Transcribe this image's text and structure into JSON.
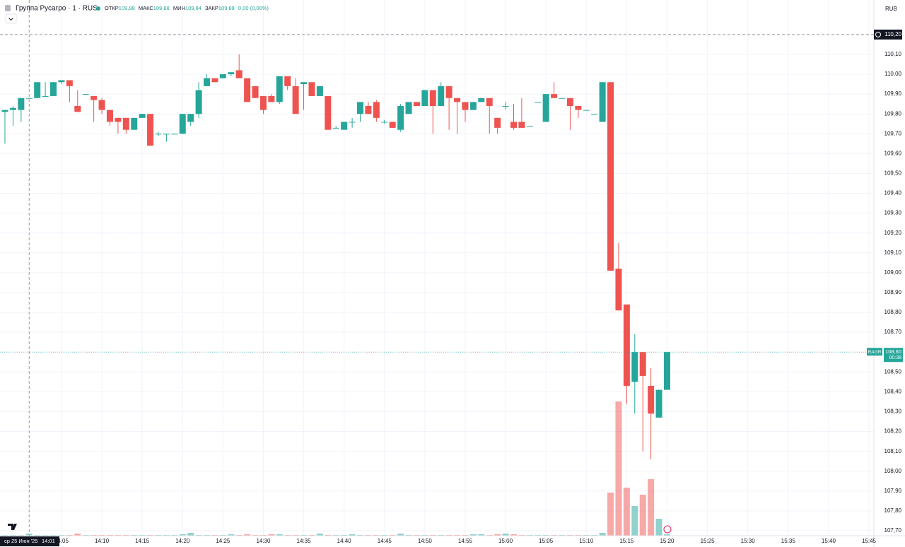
{
  "header": {
    "symbol": "Группа Русагро · 1 · RUS",
    "ohlc_labels": [
      "ОТКР",
      "МАКС",
      "МИН",
      "ЗАКР"
    ],
    "ohlc_values": [
      "109,88",
      "109,88",
      "109,84",
      "109,88"
    ],
    "change": "0,00 (0,00%)",
    "currency": "RUB"
  },
  "chart_data": {
    "type": "candlestick",
    "x": [
      "13:58",
      "13:59",
      "14:00",
      "14:01",
      "14:02",
      "14:03",
      "14:04",
      "14:05",
      "14:06",
      "14:07",
      "14:08",
      "14:09",
      "14:10",
      "14:11",
      "14:12",
      "14:13",
      "14:14",
      "14:15",
      "14:16",
      "14:17",
      "14:18",
      "14:19",
      "14:20",
      "14:21",
      "14:22",
      "14:23",
      "14:24",
      "14:25",
      "14:26",
      "14:27",
      "14:28",
      "14:29",
      "14:30",
      "14:31",
      "14:32",
      "14:33",
      "14:34",
      "14:35",
      "14:36",
      "14:37",
      "14:38",
      "14:39",
      "14:40",
      "14:41",
      "14:42",
      "14:43",
      "14:44",
      "14:45",
      "14:46",
      "14:47",
      "14:48",
      "14:49",
      "14:50",
      "14:51",
      "14:52",
      "14:53",
      "14:54",
      "14:55",
      "14:56",
      "14:57",
      "14:58",
      "14:59",
      "15:00",
      "15:01",
      "15:02",
      "15:03",
      "15:04",
      "15:05",
      "15:06",
      "15:07",
      "15:08",
      "15:09",
      "15:10",
      "15:11",
      "15:12",
      "15:13",
      "15:14",
      "15:15",
      "15:16",
      "15:17",
      "15:18",
      "15:19",
      "15:20"
    ],
    "open": [
      109.81,
      109.82,
      109.82,
      109.88,
      109.88,
      109.89,
      109.89,
      109.96,
      109.97,
      109.84,
      109.9,
      109.89,
      109.87,
      109.82,
      109.78,
      109.78,
      109.72,
      109.78,
      109.8,
      109.7,
      109.7,
      109.7,
      109.7,
      109.76,
      109.8,
      109.94,
      109.98,
      109.98,
      110.0,
      110.02,
      109.98,
      109.94,
      109.89,
      109.89,
      109.86,
      109.99,
      109.94,
      109.95,
      109.96,
      109.89,
      109.89,
      109.73,
      109.72,
      109.76,
      109.8,
      109.84,
      109.86,
      109.76,
      109.76,
      109.72,
      109.8,
      109.86,
      109.84,
      109.92,
      109.84,
      109.94,
      109.88,
      109.86,
      109.82,
      109.86,
      109.88,
      109.78,
      109.84,
      109.76,
      109.76,
      109.74,
      109.86,
      109.76,
      109.9,
      109.88,
      109.88,
      109.84,
      109.82,
      109.8,
      109.76,
      109.96,
      109.02,
      108.84,
      108.45,
      108.6,
      108.43,
      108.27,
      108.41
    ],
    "high": [
      109.82,
      109.84,
      109.88,
      109.88,
      109.96,
      109.96,
      109.96,
      109.97,
      109.97,
      109.92,
      109.9,
      109.89,
      109.88,
      109.82,
      109.78,
      109.78,
      109.78,
      109.8,
      109.8,
      109.71,
      109.7,
      109.7,
      109.8,
      109.8,
      109.96,
      110.0,
      109.98,
      110.0,
      110.01,
      110.1,
      109.98,
      109.94,
      109.89,
      109.9,
      109.99,
      109.99,
      109.98,
      109.96,
      109.96,
      109.94,
      109.89,
      109.74,
      109.76,
      109.78,
      109.86,
      109.86,
      109.87,
      109.77,
      109.76,
      109.85,
      109.86,
      109.86,
      109.92,
      109.92,
      109.96,
      109.94,
      109.88,
      109.86,
      109.86,
      109.88,
      109.88,
      109.78,
      109.86,
      109.85,
      109.88,
      109.74,
      109.86,
      109.9,
      109.96,
      109.88,
      109.88,
      109.84,
      109.82,
      109.8,
      109.96,
      109.96,
      109.15,
      108.84,
      108.69,
      108.6,
      108.52,
      108.41,
      108.6
    ],
    "low": [
      109.65,
      109.74,
      109.76,
      109.88,
      109.88,
      109.89,
      109.89,
      109.95,
      109.86,
      109.81,
      109.9,
      109.76,
      109.8,
      109.74,
      109.7,
      109.7,
      109.72,
      109.78,
      109.64,
      109.69,
      109.66,
      109.7,
      109.7,
      109.74,
      109.78,
      109.94,
      109.96,
      109.98,
      109.99,
      109.98,
      109.86,
      109.88,
      109.8,
      109.86,
      109.85,
      109.92,
      109.8,
      109.82,
      109.89,
      109.89,
      109.72,
      109.73,
      109.72,
      109.73,
      109.76,
      109.8,
      109.76,
      109.75,
      109.73,
      109.71,
      109.8,
      109.84,
      109.84,
      109.7,
      109.84,
      109.72,
      109.7,
      109.76,
      109.82,
      109.86,
      109.7,
      109.7,
      109.82,
      109.72,
      109.73,
      109.74,
      109.86,
      109.76,
      109.88,
      109.88,
      109.72,
      109.78,
      109.82,
      109.8,
      109.76,
      109.01,
      108.81,
      108.34,
      108.29,
      108.1,
      108.06,
      108.27,
      108.41
    ],
    "close": [
      109.82,
      109.83,
      109.88,
      109.88,
      109.96,
      109.89,
      109.96,
      109.97,
      109.94,
      109.81,
      109.9,
      109.87,
      109.82,
      109.76,
      109.76,
      109.72,
      109.78,
      109.8,
      109.64,
      109.7,
      109.7,
      109.7,
      109.8,
      109.8,
      109.92,
      109.98,
      109.96,
      110.0,
      110.01,
      109.98,
      109.86,
      109.88,
      109.82,
      109.86,
      109.99,
      109.94,
      109.8,
      109.96,
      109.89,
      109.94,
      109.72,
      109.73,
      109.76,
      109.76,
      109.86,
      109.8,
      109.78,
      109.76,
      109.73,
      109.84,
      109.86,
      109.84,
      109.92,
      109.84,
      109.94,
      109.88,
      109.86,
      109.82,
      109.86,
      109.88,
      109.84,
      109.73,
      109.84,
      109.73,
      109.73,
      109.74,
      109.86,
      109.9,
      109.88,
      109.88,
      109.84,
      109.82,
      109.82,
      109.8,
      109.96,
      109.01,
      108.81,
      108.43,
      108.6,
      108.48,
      108.29,
      108.41,
      108.6
    ],
    "volume": [
      1,
      1,
      1,
      3,
      1,
      1,
      1,
      1,
      1,
      3,
      1,
      1,
      1,
      1,
      1,
      1,
      1,
      1,
      1,
      1,
      1,
      1,
      2,
      4,
      1,
      1,
      1,
      1,
      2,
      1,
      2,
      1,
      1,
      2,
      2,
      1,
      1,
      1,
      1,
      3,
      1,
      1,
      1,
      2,
      1,
      1,
      1,
      1,
      1,
      3,
      1,
      1,
      1,
      1,
      1,
      1,
      1,
      1,
      2,
      2,
      1,
      2,
      3,
      2,
      1,
      1,
      1,
      1,
      1,
      1,
      1,
      1,
      1,
      1,
      4,
      61,
      190,
      68,
      42,
      58,
      80,
      24,
      2
    ],
    "up_color": "#26a69a",
    "down_color": "#ef5350",
    "ylim": [
      107.675,
      110.374
    ],
    "yticks": [
      {
        "value": 107.7,
        "label": "107,70"
      },
      {
        "value": 107.8,
        "label": "107,80"
      },
      {
        "value": 107.9,
        "label": "107,90"
      },
      {
        "value": 108.0,
        "label": "108,00"
      },
      {
        "value": 108.1,
        "label": "108,10"
      },
      {
        "value": 108.2,
        "label": "108,20"
      },
      {
        "value": 108.3,
        "label": "108,30"
      },
      {
        "value": 108.4,
        "label": "108,40"
      },
      {
        "value": 108.5,
        "label": "108,50"
      },
      {
        "value": 108.6,
        "label": "108,60"
      },
      {
        "value": 108.7,
        "label": "108,70"
      },
      {
        "value": 108.8,
        "label": "108,80"
      },
      {
        "value": 108.9,
        "label": "108,90"
      },
      {
        "value": 109.0,
        "label": "109,00"
      },
      {
        "value": 109.1,
        "label": "109,10"
      },
      {
        "value": 109.2,
        "label": "109,20"
      },
      {
        "value": 109.3,
        "label": "109,30"
      },
      {
        "value": 109.4,
        "label": "109,40"
      },
      {
        "value": 109.5,
        "label": "109,50"
      },
      {
        "value": 109.6,
        "label": "109,60"
      },
      {
        "value": 109.7,
        "label": "109,70"
      },
      {
        "value": 109.8,
        "label": "109,80"
      },
      {
        "value": 109.9,
        "label": "109,90"
      },
      {
        "value": 110.0,
        "label": "110,00"
      },
      {
        "value": 110.1,
        "label": "110,10"
      }
    ],
    "xlim": [
      "13:58",
      "15:45"
    ],
    "xticks": [
      "14:05",
      "14:10",
      "14:15",
      "14:20",
      "14:25",
      "14:30",
      "14:35",
      "14:40",
      "14:45",
      "14:50",
      "14:55",
      "15:00",
      "15:05",
      "15:10",
      "15:15",
      "15:20",
      "15:25",
      "15:30",
      "15:35",
      "15:40",
      "15:45"
    ],
    "grid": true,
    "crosshair": {
      "x": "14:01",
      "date": "ср 25 Июн '25",
      "y": {
        "value": 110.2,
        "label": "110,20"
      }
    },
    "last": {
      "symbol": "RAGR",
      "price": {
        "value": 108.6,
        "label": "108,60"
      },
      "countdown": "00:38"
    }
  }
}
